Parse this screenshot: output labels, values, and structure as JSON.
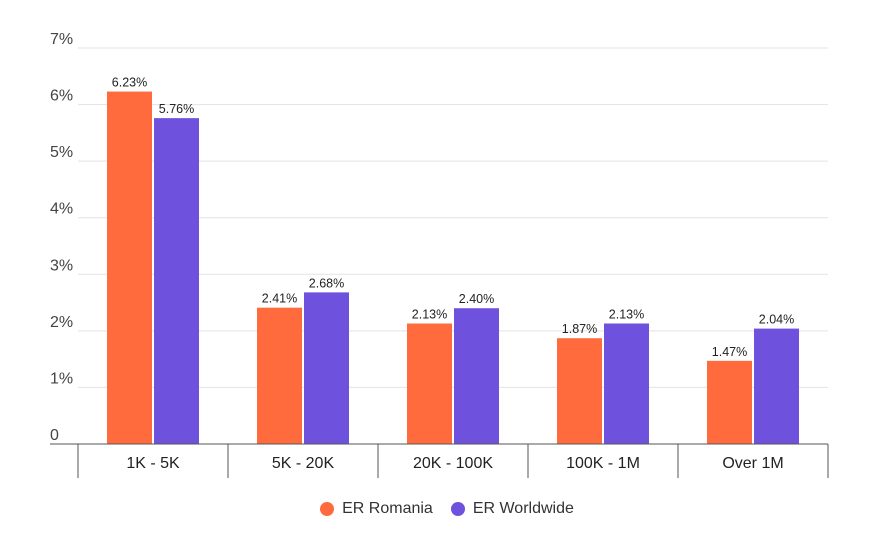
{
  "chart_data": {
    "type": "bar",
    "categories": [
      "1K - 5K",
      "5K - 20K",
      "20K - 100K",
      "100K - 1M",
      "Over 1M"
    ],
    "series": [
      {
        "name": "ER Romania",
        "color": "#ff6b3d",
        "values": [
          6.23,
          2.41,
          2.13,
          1.87,
          1.47
        ],
        "labels": [
          "6.23%",
          "2.41%",
          "2.13%",
          "1.87%",
          "1.47%"
        ]
      },
      {
        "name": "ER Worldwide",
        "color": "#6e51dc",
        "values": [
          5.76,
          2.68,
          2.4,
          2.13,
          2.04
        ],
        "labels": [
          "5.76%",
          "2.68%",
          "2.40%",
          "2.13%",
          "2.04%"
        ]
      }
    ],
    "yticks": [
      {
        "value": 0,
        "label": "0"
      },
      {
        "value": 1,
        "label": "1%"
      },
      {
        "value": 2,
        "label": "2%"
      },
      {
        "value": 3,
        "label": "3%"
      },
      {
        "value": 4,
        "label": "4%"
      },
      {
        "value": 5,
        "label": "5%"
      },
      {
        "value": 6,
        "label": "6%"
      },
      {
        "value": 7,
        "label": "7%"
      }
    ],
    "ylim": [
      0,
      7
    ],
    "grid": true,
    "legend_position": "bottom-center"
  }
}
